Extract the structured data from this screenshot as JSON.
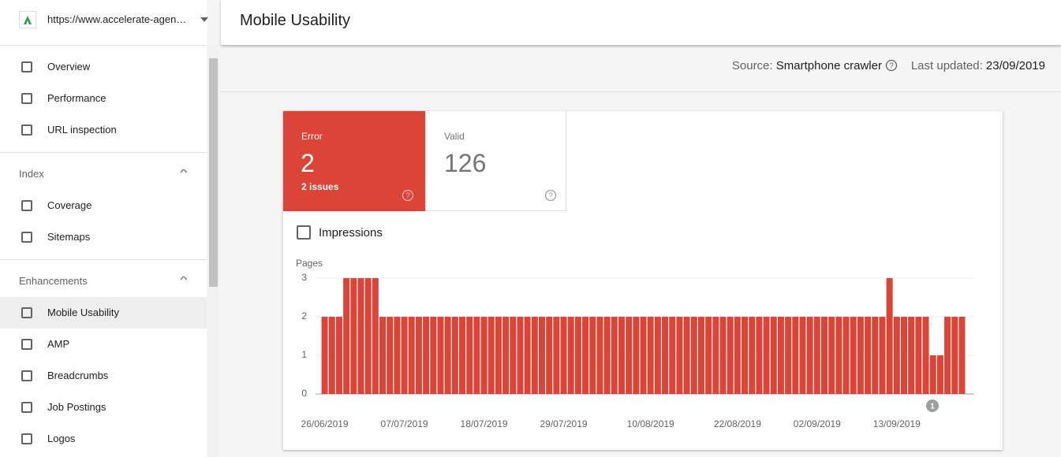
{
  "sidebar": {
    "property": "https://www.accelerate-agen…",
    "nav": [
      "Overview",
      "Performance",
      "URL inspection"
    ],
    "sections": [
      {
        "title": "Index",
        "items": [
          "Coverage",
          "Sitemaps"
        ]
      },
      {
        "title": "Enhancements",
        "items": [
          "Mobile Usability",
          "AMP",
          "Breadcrumbs",
          "Job Postings",
          "Logos"
        ]
      }
    ]
  },
  "header": {
    "title": "Mobile Usability"
  },
  "status": {
    "source_label": "Source:",
    "source": "Smartphone crawler",
    "updated_label": "Last updated:",
    "updated": "23/09/2019"
  },
  "tiles": [
    {
      "label": "Error",
      "value": 2,
      "note": "2 issues"
    },
    {
      "label": "Valid",
      "value": 126
    }
  ],
  "toggle": {
    "label": "Impressions"
  },
  "chart_data": {
    "type": "bar",
    "y_label": "Pages",
    "color": "#db4437",
    "categories": [
      "26/06/2019",
      null,
      null,
      null,
      null,
      null,
      null,
      null,
      null,
      null,
      null,
      "07/07/2019",
      null,
      null,
      null,
      null,
      null,
      null,
      null,
      null,
      null,
      null,
      "18/07/2019",
      null,
      null,
      null,
      null,
      null,
      null,
      null,
      null,
      null,
      null,
      "29/07/2019",
      null,
      null,
      null,
      null,
      null,
      null,
      null,
      null,
      null,
      null,
      null,
      "10/08/2019",
      null,
      null,
      null,
      null,
      null,
      null,
      null,
      null,
      null,
      null,
      null,
      "22/08/2019",
      null,
      null,
      null,
      null,
      null,
      null,
      null,
      null,
      null,
      null,
      "02/09/2019",
      null,
      null,
      null,
      null,
      null,
      null,
      null,
      null,
      null,
      null,
      "13/09/2019",
      null,
      null,
      null,
      null,
      null,
      null,
      null,
      null,
      null
    ],
    "values": [
      2,
      2,
      2,
      3,
      3,
      3,
      3,
      3,
      2,
      2,
      2,
      2,
      2,
      2,
      2,
      2,
      2,
      2,
      2,
      2,
      2,
      2,
      2,
      2,
      2,
      2,
      2,
      2,
      2,
      2,
      2,
      2,
      2,
      2,
      2,
      2,
      2,
      2,
      2,
      2,
      2,
      2,
      2,
      2,
      2,
      2,
      2,
      2,
      2,
      2,
      2,
      2,
      2,
      2,
      2,
      2,
      2,
      2,
      2,
      2,
      2,
      2,
      2,
      2,
      2,
      2,
      2,
      2,
      2,
      2,
      2,
      2,
      2,
      2,
      2,
      2,
      2,
      2,
      3,
      2,
      2,
      2,
      2,
      2,
      1,
      1,
      2,
      2,
      2
    ],
    "ylim": [
      0,
      3
    ],
    "yticks": [
      0,
      1,
      2,
      3
    ],
    "grid": true,
    "annotations": [
      {
        "label": "1"
      }
    ]
  }
}
